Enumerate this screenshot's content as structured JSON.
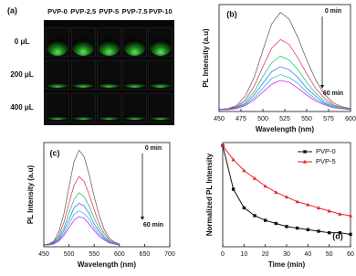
{
  "photo_panel": {
    "label": "(a)",
    "columns": [
      {
        "text": "PVP-0",
        "color": "#111111"
      },
      {
        "text": "PVP-2.5",
        "color": "#e0003c"
      },
      {
        "text": "PVP-5",
        "color": "#2ecc40"
      },
      {
        "text": "PVP-7.5",
        "color": "#1f3fa8"
      },
      {
        "text": "PVP-10",
        "color": "#8b2c12"
      }
    ],
    "rows": [
      "0 μL",
      "200 μL",
      "400 μL"
    ],
    "row_color": "#7b2a8c"
  },
  "chart_data": [
    {
      "type": "line",
      "panel_label": "(b)",
      "xlabel": "Wavelength (nm)",
      "ylabel": "PL Intensity (a.u)",
      "annotations": [
        "0 min",
        "60 min"
      ],
      "x": [
        450,
        460,
        470,
        480,
        490,
        500,
        510,
        520,
        530,
        540,
        550,
        560,
        570,
        580,
        590,
        600
      ],
      "xlim": [
        450,
        600
      ],
      "xticks": [
        450,
        475,
        500,
        525,
        550,
        575,
        600
      ],
      "ylim": [
        0,
        1.1
      ],
      "series": [
        {
          "color": "#555555",
          "values": [
            0.02,
            0.03,
            0.06,
            0.16,
            0.35,
            0.63,
            0.9,
            1.02,
            0.95,
            0.76,
            0.53,
            0.33,
            0.18,
            0.09,
            0.05,
            0.03
          ]
        },
        {
          "color": "#e91e63",
          "values": [
            0.02,
            0.03,
            0.05,
            0.12,
            0.26,
            0.46,
            0.65,
            0.74,
            0.69,
            0.55,
            0.39,
            0.24,
            0.14,
            0.07,
            0.04,
            0.03
          ]
        },
        {
          "color": "#00c853",
          "values": [
            0.02,
            0.03,
            0.04,
            0.1,
            0.2,
            0.36,
            0.5,
            0.57,
            0.53,
            0.43,
            0.3,
            0.19,
            0.11,
            0.06,
            0.04,
            0.03
          ]
        },
        {
          "color": "#2962ff",
          "values": [
            0.02,
            0.02,
            0.04,
            0.08,
            0.17,
            0.29,
            0.41,
            0.46,
            0.43,
            0.35,
            0.24,
            0.16,
            0.09,
            0.05,
            0.03,
            0.02
          ]
        },
        {
          "color": "#00bcd4",
          "values": [
            0.02,
            0.02,
            0.03,
            0.07,
            0.14,
            0.24,
            0.34,
            0.38,
            0.35,
            0.29,
            0.2,
            0.13,
            0.08,
            0.05,
            0.03,
            0.02
          ]
        },
        {
          "color": "#d500f9",
          "values": [
            0.02,
            0.02,
            0.03,
            0.06,
            0.12,
            0.2,
            0.28,
            0.32,
            0.3,
            0.24,
            0.17,
            0.11,
            0.07,
            0.04,
            0.03,
            0.02
          ]
        }
      ]
    },
    {
      "type": "line",
      "panel_label": "(c)",
      "xlabel": "Wavelength (nm)",
      "ylabel": "PL Intensity (a.u)",
      "annotations": [
        "0 min",
        "60 min"
      ],
      "x": [
        450,
        460,
        470,
        480,
        490,
        500,
        510,
        520,
        530,
        540,
        550,
        560,
        570,
        580,
        590,
        600
      ],
      "xlim": [
        450,
        700
      ],
      "xticks": [
        450,
        500,
        550,
        600,
        650,
        700
      ],
      "ylim": [
        0,
        1.1
      ],
      "series": [
        {
          "color": "#555555",
          "values": [
            0.02,
            0.03,
            0.06,
            0.16,
            0.35,
            0.63,
            0.9,
            1.02,
            0.95,
            0.76,
            0.53,
            0.33,
            0.18,
            0.09,
            0.05,
            0.03
          ]
        },
        {
          "color": "#e91e63",
          "values": [
            0.02,
            0.03,
            0.05,
            0.12,
            0.26,
            0.46,
            0.65,
            0.74,
            0.69,
            0.55,
            0.39,
            0.24,
            0.14,
            0.07,
            0.04,
            0.03
          ]
        },
        {
          "color": "#00c853",
          "values": [
            0.02,
            0.03,
            0.04,
            0.1,
            0.2,
            0.36,
            0.5,
            0.57,
            0.53,
            0.43,
            0.3,
            0.19,
            0.11,
            0.06,
            0.04,
            0.03
          ]
        },
        {
          "color": "#2962ff",
          "values": [
            0.02,
            0.02,
            0.04,
            0.08,
            0.17,
            0.29,
            0.41,
            0.46,
            0.43,
            0.35,
            0.24,
            0.16,
            0.09,
            0.05,
            0.03,
            0.02
          ]
        },
        {
          "color": "#00bcd4",
          "values": [
            0.02,
            0.02,
            0.03,
            0.07,
            0.14,
            0.24,
            0.34,
            0.38,
            0.35,
            0.29,
            0.2,
            0.13,
            0.08,
            0.05,
            0.03,
            0.02
          ]
        },
        {
          "color": "#d500f9",
          "values": [
            0.02,
            0.02,
            0.03,
            0.06,
            0.12,
            0.2,
            0.28,
            0.32,
            0.3,
            0.24,
            0.17,
            0.11,
            0.07,
            0.04,
            0.03,
            0.02
          ]
        }
      ]
    },
    {
      "type": "line",
      "panel_label": "(d)",
      "xlabel": "Time (min)",
      "ylabel": "Normalized PL Intensity",
      "x": [
        0,
        5,
        10,
        15,
        20,
        25,
        30,
        35,
        40,
        45,
        50,
        55,
        60
      ],
      "xlim": [
        0,
        60
      ],
      "xticks": [
        0,
        10,
        20,
        30,
        40,
        50,
        60
      ],
      "ylim": [
        0.35,
        1.02
      ],
      "markers": true,
      "legend": "top-right",
      "series": [
        {
          "name": "PVP-0",
          "color": "#111111",
          "values": [
            1.0,
            0.72,
            0.6,
            0.55,
            0.52,
            0.5,
            0.48,
            0.47,
            0.46,
            0.45,
            0.44,
            0.44,
            0.43
          ]
        },
        {
          "name": "PVP-5",
          "color": "#e8202a",
          "values": [
            1.0,
            0.91,
            0.84,
            0.79,
            0.74,
            0.7,
            0.67,
            0.64,
            0.62,
            0.6,
            0.58,
            0.56,
            0.55
          ]
        }
      ]
    }
  ]
}
